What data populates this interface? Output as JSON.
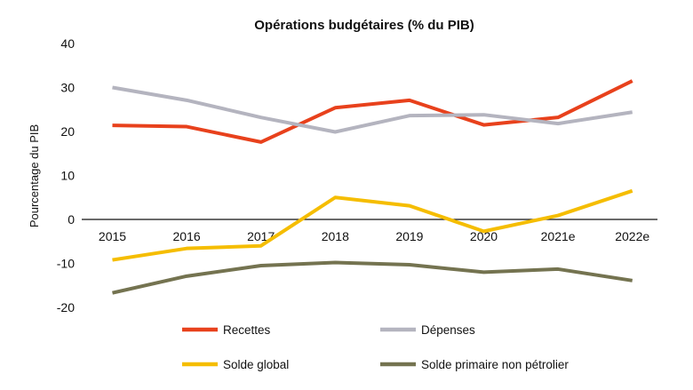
{
  "chart_data": {
    "type": "line",
    "title": "Opérations budgétaires (% du PIB)",
    "xlabel": "",
    "ylabel": "Pourcentage du PIB",
    "ylim": [
      -20,
      40
    ],
    "yticks": [
      40,
      30,
      20,
      10,
      0,
      -10,
      -20
    ],
    "grid": false,
    "legend": "bottom",
    "categories": [
      "2015",
      "2016",
      "2017",
      "2018",
      "2019",
      "2020",
      "2021e",
      "2022e"
    ],
    "series": [
      {
        "name": "Recettes",
        "color": "#e8411c",
        "values": [
          21.4,
          21.1,
          17.6,
          25.4,
          27.1,
          21.5,
          23.2,
          31.5
        ]
      },
      {
        "name": "Dépenses",
        "color": "#b4b4bf",
        "values": [
          30.0,
          27.1,
          23.2,
          19.9,
          23.6,
          23.8,
          21.8,
          24.4
        ]
      },
      {
        "name": "Solde global",
        "color": "#f5bd00",
        "values": [
          -9.2,
          -6.6,
          -6.0,
          5.0,
          3.1,
          -2.7,
          0.9,
          6.5
        ]
      },
      {
        "name": "Solde primaire non pétrolier",
        "color": "#747350",
        "values": [
          -16.7,
          -12.9,
          -10.5,
          -9.8,
          -10.3,
          -12.0,
          -11.3,
          -13.9
        ]
      }
    ]
  }
}
